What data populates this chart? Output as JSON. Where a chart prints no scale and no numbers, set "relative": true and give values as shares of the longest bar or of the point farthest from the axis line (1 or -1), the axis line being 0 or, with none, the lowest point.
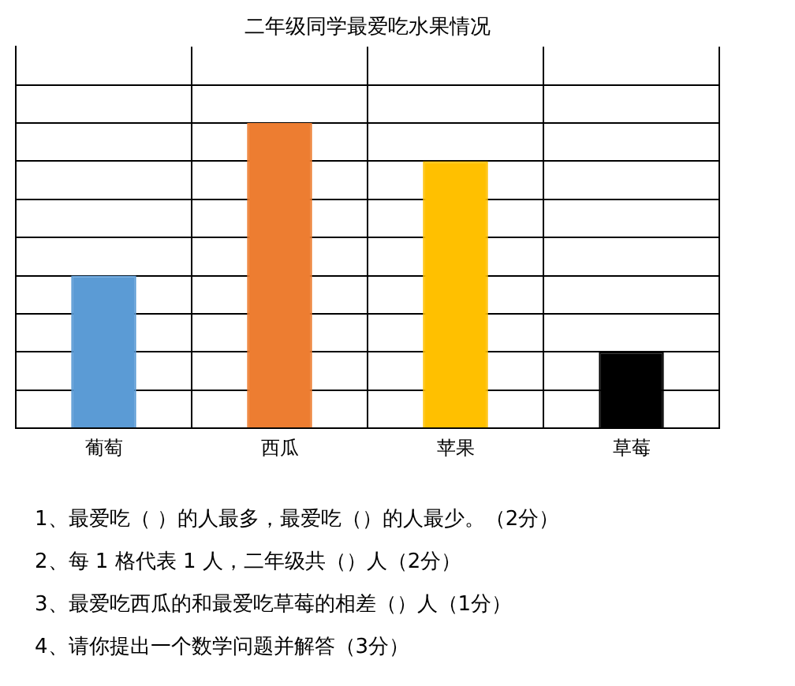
{
  "chart_data": {
    "type": "bar",
    "title": "二年级同学最爱吃水果情况",
    "categories": [
      "葡萄",
      "西瓜",
      "苹果",
      "草莓"
    ],
    "values": [
      0.5,
      1,
      0.875,
      0.25
    ],
    "relative": true,
    "colors": [
      "#5b9bd5",
      "#ed7d31",
      "#ffc000",
      "#000000"
    ],
    "grid": true,
    "legend": false,
    "annotations": [
      "1、最爱吃（     ）的人最多，最爱吃（）的人最少。（2分）",
      "2、每 1 格代表 1 人，二年级共（）人（2分）",
      "3、最爱吃西瓜的和最爱吃草莓的相差（）人（1分）",
      "4、请你提出一个数学问题并解答（3分）"
    ]
  }
}
